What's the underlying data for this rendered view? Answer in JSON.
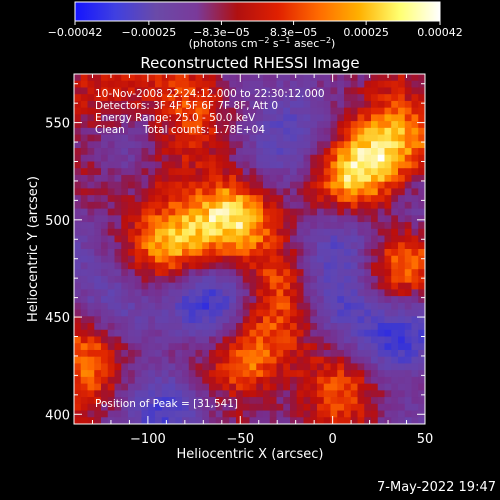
{
  "chart_data": {
    "type": "heatmap",
    "title": "Reconstructed RHESSI Image",
    "xlabel": "Heliocentric X (arcsec)",
    "ylabel": "Heliocentric Y (arcsec)",
    "xlim": [
      -140,
      50
    ],
    "ylim": [
      395,
      575
    ],
    "x_ticks": [
      -100,
      -50,
      0,
      50
    ],
    "x_tick_labels": [
      "−100",
      "−50",
      "0",
      "50"
    ],
    "y_ticks": [
      400,
      450,
      500,
      550
    ],
    "y_tick_labels": [
      "400",
      "450",
      "500",
      "550"
    ],
    "grid": false,
    "colorbar": {
      "range": [
        -0.00042,
        0.00042
      ],
      "ticks": [
        -0.00042,
        -0.00025,
        -8.3e-05,
        8.3e-05,
        0.00025,
        0.00042
      ],
      "tick_labels": [
        "−0.00042",
        "−0.00025",
        "−8.3e−05",
        "8.3e−05",
        "0.00025",
        "0.00042"
      ],
      "unit_label": "(photons cm",
      "unit_exp1": "−2",
      "unit_mid": " s",
      "unit_exp2": "−1",
      "unit_end": " asec",
      "unit_exp3": "−2",
      "unit_close": ")",
      "colors": [
        "#1414ff",
        "#4040e0",
        "#6a4aa8",
        "#7a3a9a",
        "#b01010",
        "#e02000",
        "#ff6a00",
        "#ffb000",
        "#ffff70",
        "#ffffff"
      ]
    },
    "annotations": {
      "time_range": "10-Nov-2008 22:24:12.000 to 22:30:12.000",
      "detectors": "Detectors: 3F 4F 5F 6F 7F 8F, Att 0",
      "energy": "Energy Range: 25.0 - 50.0 keV",
      "method": "Clean",
      "counts": "Total counts: 1.78E+04",
      "peak": "Position of Peak = [31,541]"
    },
    "peak_position": [
      31,
      541
    ],
    "bright_regions": [
      {
        "x": 30,
        "y": 545,
        "level": 0.95
      },
      {
        "x": 10,
        "y": 520,
        "level": 0.7
      },
      {
        "x": -130,
        "y": 435,
        "level": 0.8
      },
      {
        "x": -85,
        "y": 490,
        "level": 0.75
      },
      {
        "x": -55,
        "y": 505,
        "level": 0.65
      },
      {
        "x": -45,
        "y": 425,
        "level": 0.75
      },
      {
        "x": -120,
        "y": 560,
        "level": 0.6
      },
      {
        "x": -25,
        "y": 470,
        "level": 0.55
      },
      {
        "x": -100,
        "y": 520,
        "level": 0.6
      },
      {
        "x": 40,
        "y": 480,
        "level": 0.5
      },
      {
        "x": 5,
        "y": 420,
        "level": 0.45
      },
      {
        "x": -75,
        "y": 570,
        "level": 0.5
      }
    ],
    "dark_regions": [
      {
        "x": -110,
        "y": 530,
        "level": -0.6
      },
      {
        "x": -120,
        "y": 460,
        "level": -0.5
      },
      {
        "x": -20,
        "y": 555,
        "level": -0.5
      },
      {
        "x": 0,
        "y": 460,
        "level": -0.55
      },
      {
        "x": 40,
        "y": 440,
        "level": -0.6
      },
      {
        "x": -70,
        "y": 455,
        "level": -0.5
      },
      {
        "x": -90,
        "y": 410,
        "level": -0.45
      },
      {
        "x": 10,
        "y": 500,
        "level": -0.4
      }
    ]
  },
  "footer": {
    "timestamp": "7-May-2022 19:47"
  }
}
